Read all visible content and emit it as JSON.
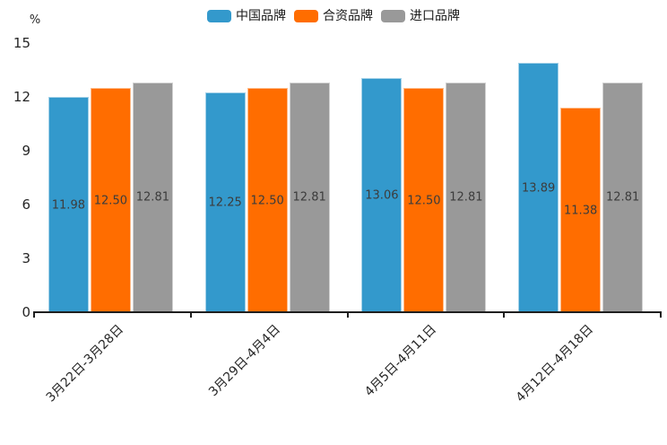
{
  "chart_data": {
    "type": "bar",
    "title": "",
    "ylabel": "%",
    "xlabel": "",
    "categories": [
      "3月22日-3月28日",
      "3月29日-4月4日",
      "4月5日-4月11日",
      "4月12日-4月18日"
    ],
    "series": [
      {
        "name": "中国品牌",
        "color": "#3399cc",
        "values": [
          11.98,
          12.25,
          13.06,
          13.89
        ]
      },
      {
        "name": "合资品牌",
        "color": "#ff6d00",
        "values": [
          12.5,
          12.5,
          12.5,
          11.38
        ]
      },
      {
        "name": "进口品牌",
        "color": "#999999",
        "values": [
          12.81,
          12.81,
          12.81,
          12.81
        ]
      }
    ],
    "value_label_decimals": 2,
    "ylim": [
      0,
      15
    ],
    "yticks": [
      0,
      3,
      6,
      9,
      12,
      15
    ],
    "grid": false,
    "legend_position": "top",
    "x_label_rotation_deg": 45
  }
}
